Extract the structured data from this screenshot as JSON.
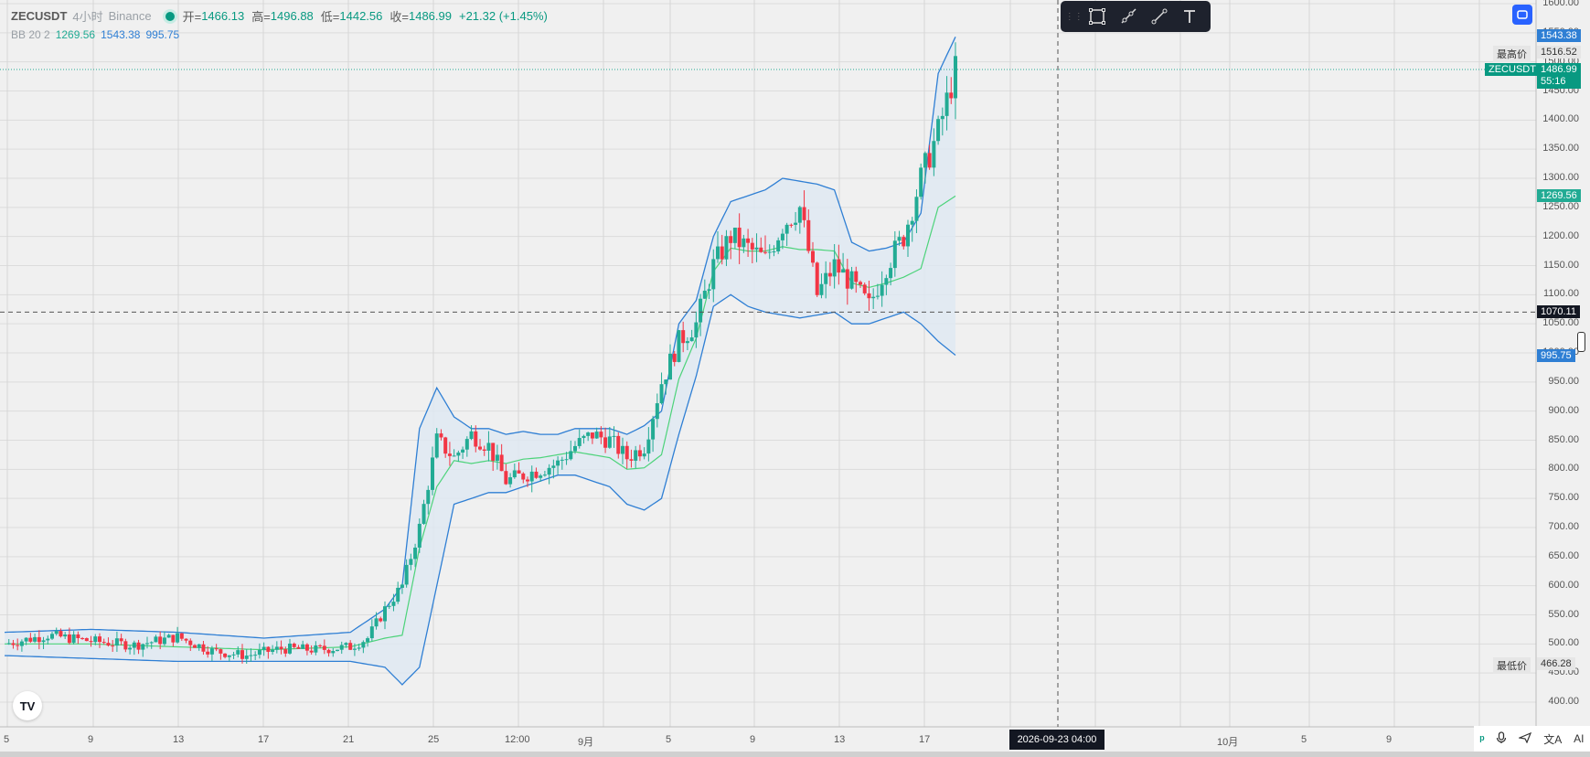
{
  "legend": {
    "symbol": "ZECUSDT",
    "interval": "4小时",
    "exchange": "Binance",
    "open_label": "开=",
    "open": "1466.13",
    "high_label": "高=",
    "high": "1496.88",
    "low_label": "低=",
    "low": "1442.56",
    "close_label": "收=",
    "close": "1486.99",
    "change": "+21.32 (+1.45%)",
    "bb_params": "BB 20 2",
    "bb_basis": "1269.56",
    "bb_upper": "1543.38",
    "bb_lower": "995.75"
  },
  "price_axis": {
    "ticks": [
      "1600.00",
      "1550.00",
      "1500.00",
      "1450.00",
      "1400.00",
      "1350.00",
      "1300.00",
      "1250.00",
      "1200.00",
      "1150.00",
      "1100.00",
      "1050.00",
      "1000.00",
      "950.00",
      "900.00",
      "850.00",
      "800.00",
      "750.00",
      "700.00",
      "650.00",
      "600.00",
      "550.00",
      "500.00",
      "450.00",
      "400.00"
    ],
    "tag_upper": "1543.38",
    "tag_high_label": "最高价",
    "tag_high": "1516.52",
    "tag_symbol": "ZECUSDT",
    "tag_last": "1486.99",
    "tag_countdown": "55:16",
    "tag_basis": "1269.56",
    "tag_cursor": "1070.11",
    "tag_lower": "995.75",
    "tag_low_label": "最低价",
    "tag_low": "466.28"
  },
  "time_axis": {
    "labels": [
      "5",
      "9",
      "13",
      "17",
      "21",
      "25",
      "12:00",
      "9月",
      "5",
      "9",
      "13",
      "17",
      "10月",
      "5",
      "9"
    ],
    "cursor_time": "2026-09-23   04:00"
  },
  "colors": {
    "up": "#22ab94",
    "down": "#f23645",
    "band_line": "#2f7fd4",
    "band_fill": "#dfe9f3",
    "basis": "#4cd37a",
    "accent": "#2962ff"
  },
  "toolbar_icons": [
    "rectangle-icon",
    "ray-icon",
    "trendline-icon",
    "text-icon"
  ],
  "bottom_icons": [
    "tv-icon",
    "mic-icon",
    "send-icon",
    "translate-icon",
    "ai-icon"
  ],
  "bottom_ai": "AI",
  "logo": "TV",
  "chart_data": {
    "type": "candlestick",
    "symbol": "ZECUSDT",
    "interval": "4小时",
    "ylim": [
      380,
      1620
    ],
    "indicator": "BB 20 2",
    "price_path": [
      [
        0,
        500
      ],
      [
        5,
        515
      ],
      [
        10,
        505
      ],
      [
        15,
        498
      ],
      [
        20,
        512
      ],
      [
        24,
        488
      ],
      [
        28,
        480
      ],
      [
        32,
        492
      ],
      [
        36,
        490
      ],
      [
        40,
        495
      ],
      [
        42,
        510
      ],
      [
        44,
        560
      ],
      [
        46,
        600
      ],
      [
        48,
        700
      ],
      [
        50,
        850
      ],
      [
        52,
        820
      ],
      [
        54,
        860
      ],
      [
        56,
        840
      ],
      [
        58,
        780
      ],
      [
        60,
        790
      ],
      [
        62,
        800
      ],
      [
        64,
        810
      ],
      [
        66,
        840
      ],
      [
        68,
        860
      ],
      [
        70,
        850
      ],
      [
        72,
        820
      ],
      [
        74,
        840
      ],
      [
        76,
        950
      ],
      [
        78,
        1020
      ],
      [
        80,
        1050
      ],
      [
        82,
        1150
      ],
      [
        84,
        1200
      ],
      [
        86,
        1180
      ],
      [
        88,
        1160
      ],
      [
        90,
        1220
      ],
      [
        92,
        1250
      ],
      [
        94,
        1100
      ],
      [
        96,
        1150
      ],
      [
        98,
        1120
      ],
      [
        100,
        1080
      ],
      [
        102,
        1150
      ],
      [
        104,
        1200
      ],
      [
        106,
        1300
      ],
      [
        108,
        1380
      ],
      [
        110,
        1486
      ]
    ],
    "bb_upper_path": [
      [
        0,
        520
      ],
      [
        10,
        525
      ],
      [
        20,
        520
      ],
      [
        30,
        510
      ],
      [
        40,
        520
      ],
      [
        44,
        560
      ],
      [
        46,
        600
      ],
      [
        48,
        870
      ],
      [
        50,
        940
      ],
      [
        52,
        890
      ],
      [
        54,
        870
      ],
      [
        56,
        870
      ],
      [
        58,
        860
      ],
      [
        60,
        865
      ],
      [
        62,
        860
      ],
      [
        64,
        860
      ],
      [
        66,
        870
      ],
      [
        68,
        870
      ],
      [
        70,
        870
      ],
      [
        72,
        860
      ],
      [
        74,
        875
      ],
      [
        76,
        900
      ],
      [
        78,
        1050
      ],
      [
        80,
        1090
      ],
      [
        82,
        1200
      ],
      [
        84,
        1260
      ],
      [
        86,
        1270
      ],
      [
        88,
        1280
      ],
      [
        90,
        1300
      ],
      [
        92,
        1295
      ],
      [
        94,
        1290
      ],
      [
        96,
        1280
      ],
      [
        98,
        1190
      ],
      [
        100,
        1175
      ],
      [
        102,
        1180
      ],
      [
        104,
        1190
      ],
      [
        106,
        1240
      ],
      [
        108,
        1480
      ],
      [
        110,
        1543
      ]
    ],
    "bb_lower_path": [
      [
        0,
        480
      ],
      [
        10,
        475
      ],
      [
        20,
        470
      ],
      [
        30,
        470
      ],
      [
        40,
        470
      ],
      [
        44,
        460
      ],
      [
        46,
        430
      ],
      [
        48,
        460
      ],
      [
        50,
        600
      ],
      [
        52,
        740
      ],
      [
        54,
        750
      ],
      [
        56,
        760
      ],
      [
        58,
        760
      ],
      [
        60,
        770
      ],
      [
        62,
        780
      ],
      [
        64,
        790
      ],
      [
        66,
        790
      ],
      [
        68,
        780
      ],
      [
        70,
        770
      ],
      [
        72,
        740
      ],
      [
        74,
        730
      ],
      [
        76,
        750
      ],
      [
        78,
        860
      ],
      [
        80,
        960
      ],
      [
        82,
        1080
      ],
      [
        84,
        1100
      ],
      [
        86,
        1080
      ],
      [
        88,
        1070
      ],
      [
        90,
        1065
      ],
      [
        92,
        1060
      ],
      [
        94,
        1065
      ],
      [
        96,
        1070
      ],
      [
        98,
        1050
      ],
      [
        100,
        1050
      ],
      [
        102,
        1060
      ],
      [
        104,
        1070
      ],
      [
        106,
        1050
      ],
      [
        108,
        1020
      ],
      [
        110,
        996
      ]
    ]
  }
}
